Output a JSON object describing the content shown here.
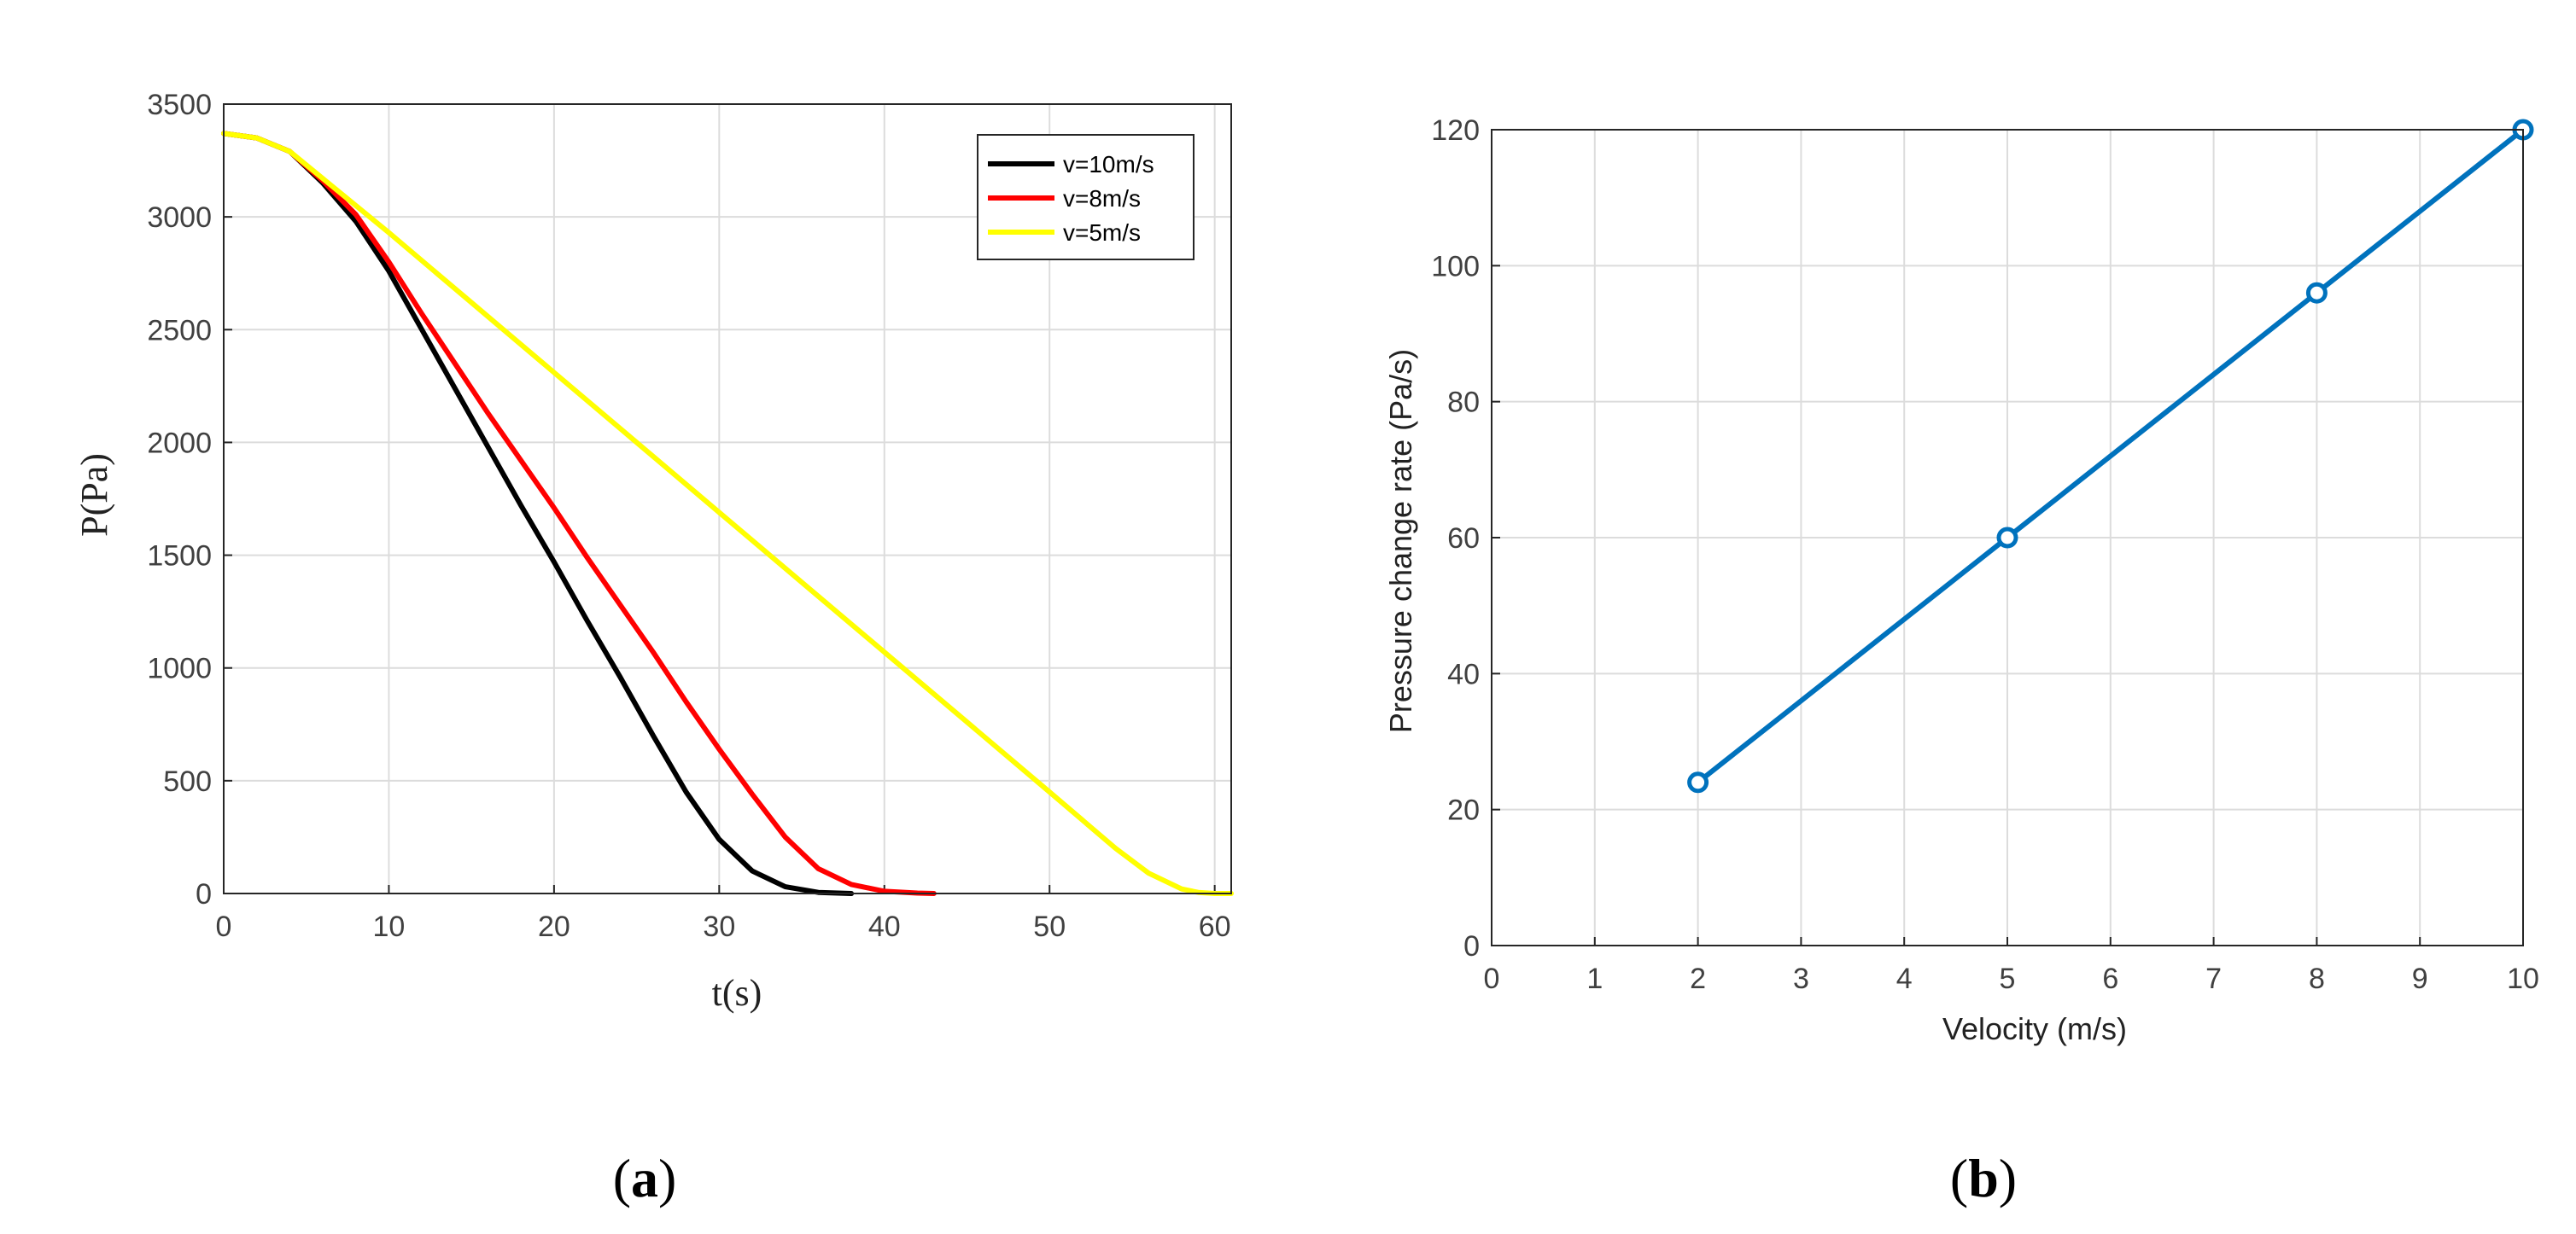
{
  "chart_data": [
    {
      "id": "a",
      "type": "line",
      "panel_label": {
        "open": "(",
        "letter": "a",
        "close": ")"
      },
      "xlabel": "t(s)",
      "ylabel": "P(Pa)",
      "xlim": [
        0,
        61
      ],
      "ylim": [
        0,
        3500
      ],
      "xticks": [
        0,
        10,
        20,
        30,
        40,
        50,
        60
      ],
      "yticks": [
        0,
        500,
        1000,
        1500,
        2000,
        2500,
        3000,
        3500
      ],
      "grid": true,
      "legend_position": "top-right",
      "series": [
        {
          "name": "v=10m/s",
          "color": "#000000",
          "x": [
            0,
            2,
            4,
            6,
            8,
            10,
            12,
            14,
            16,
            18,
            20,
            22,
            24,
            26,
            28,
            30,
            32,
            34,
            36,
            38
          ],
          "values": [
            3370,
            3350,
            3290,
            3150,
            2980,
            2760,
            2500,
            2240,
            1980,
            1720,
            1470,
            1210,
            960,
            700,
            450,
            240,
            100,
            30,
            5,
            0
          ]
        },
        {
          "name": "v=8m/s",
          "color": "#ff0000",
          "x": [
            0,
            2,
            4,
            6,
            8,
            10,
            12,
            14,
            16,
            18,
            20,
            22,
            24,
            26,
            28,
            30,
            32,
            34,
            36,
            38,
            40,
            42,
            43
          ],
          "values": [
            3370,
            3350,
            3290,
            3160,
            3010,
            2800,
            2570,
            2350,
            2130,
            1920,
            1710,
            1490,
            1280,
            1070,
            850,
            640,
            440,
            250,
            110,
            40,
            10,
            2,
            0
          ]
        },
        {
          "name": "v=5m/s",
          "color": "#ffff00",
          "x": [
            0,
            2,
            4,
            6,
            8,
            10,
            15,
            20,
            25,
            30,
            35,
            40,
            45,
            50,
            54,
            56,
            58,
            59,
            60,
            61
          ],
          "values": [
            3370,
            3350,
            3290,
            3170,
            3050,
            2930,
            2620,
            2310,
            2000,
            1690,
            1380,
            1070,
            760,
            450,
            200,
            90,
            20,
            5,
            0,
            0
          ]
        }
      ]
    },
    {
      "id": "b",
      "type": "line",
      "panel_label": {
        "open": "(",
        "letter": "b",
        "close": ")"
      },
      "xlabel": "Velocity (m/s)",
      "ylabel": "Pressure change rate (Pa/s)",
      "xlim": [
        0,
        10
      ],
      "ylim": [
        0,
        120
      ],
      "xticks": [
        0,
        1,
        2,
        3,
        4,
        5,
        6,
        7,
        8,
        9,
        10
      ],
      "yticks": [
        0,
        20,
        40,
        60,
        80,
        100,
        120
      ],
      "grid": true,
      "series": [
        {
          "name": "Pressure change rate",
          "color": "#0072bd",
          "marker": "circle",
          "x": [
            2,
            5,
            8,
            10
          ],
          "values": [
            24,
            60,
            96,
            120
          ]
        }
      ]
    }
  ]
}
